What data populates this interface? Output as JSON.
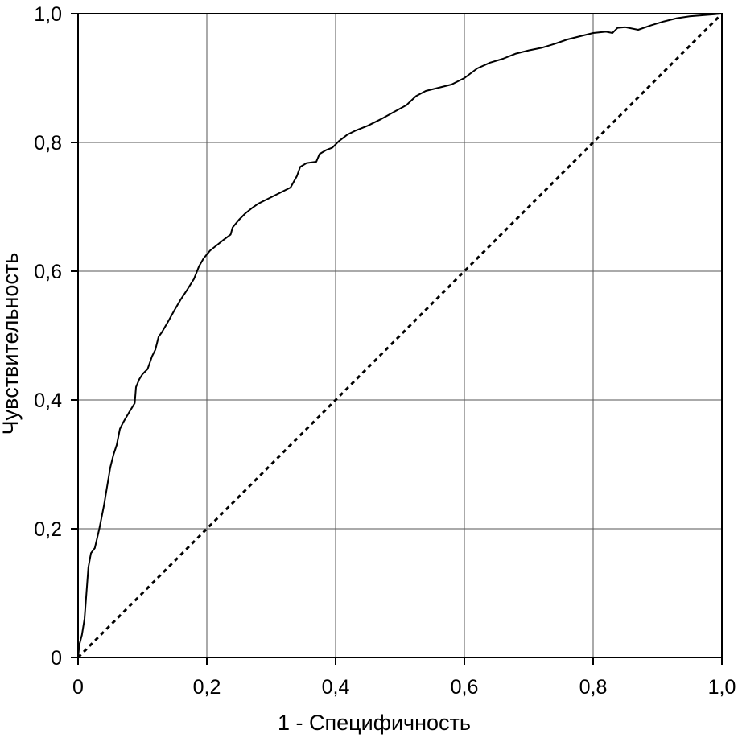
{
  "chart_data": {
    "type": "line",
    "title": "",
    "xlabel": "1 - Специфичность",
    "ylabel": "Чувствительность",
    "xlim": [
      0,
      1
    ],
    "ylim": [
      0,
      1
    ],
    "grid": true,
    "x_ticks": [
      0,
      0.2,
      0.4,
      0.6,
      0.8,
      1.0
    ],
    "x_tick_labels": [
      "0",
      "0,2",
      "0,4",
      "0,6",
      "0,8",
      "1,0"
    ],
    "y_ticks": [
      0,
      0.2,
      0.4,
      0.6,
      0.8,
      1.0
    ],
    "y_tick_labels": [
      "0",
      "0,2",
      "0,4",
      "0,6",
      "0,8",
      "1,0"
    ],
    "series": [
      {
        "style": "solid",
        "color": "#000000",
        "points": [
          [
            0.0,
            0.0
          ],
          [
            0.002,
            0.02
          ],
          [
            0.006,
            0.035
          ],
          [
            0.01,
            0.06
          ],
          [
            0.013,
            0.1
          ],
          [
            0.016,
            0.14
          ],
          [
            0.02,
            0.162
          ],
          [
            0.026,
            0.17
          ],
          [
            0.033,
            0.2
          ],
          [
            0.04,
            0.235
          ],
          [
            0.045,
            0.265
          ],
          [
            0.05,
            0.295
          ],
          [
            0.055,
            0.315
          ],
          [
            0.06,
            0.33
          ],
          [
            0.065,
            0.355
          ],
          [
            0.07,
            0.365
          ],
          [
            0.08,
            0.382
          ],
          [
            0.088,
            0.395
          ],
          [
            0.09,
            0.42
          ],
          [
            0.095,
            0.432
          ],
          [
            0.1,
            0.44
          ],
          [
            0.108,
            0.448
          ],
          [
            0.115,
            0.468
          ],
          [
            0.12,
            0.478
          ],
          [
            0.125,
            0.498
          ],
          [
            0.13,
            0.505
          ],
          [
            0.14,
            0.522
          ],
          [
            0.15,
            0.54
          ],
          [
            0.16,
            0.557
          ],
          [
            0.17,
            0.572
          ],
          [
            0.18,
            0.588
          ],
          [
            0.188,
            0.608
          ],
          [
            0.195,
            0.62
          ],
          [
            0.205,
            0.632
          ],
          [
            0.215,
            0.64
          ],
          [
            0.225,
            0.648
          ],
          [
            0.237,
            0.657
          ],
          [
            0.24,
            0.668
          ],
          [
            0.25,
            0.68
          ],
          [
            0.26,
            0.69
          ],
          [
            0.27,
            0.698
          ],
          [
            0.28,
            0.705
          ],
          [
            0.3,
            0.715
          ],
          [
            0.32,
            0.725
          ],
          [
            0.33,
            0.73
          ],
          [
            0.34,
            0.748
          ],
          [
            0.345,
            0.762
          ],
          [
            0.355,
            0.768
          ],
          [
            0.37,
            0.77
          ],
          [
            0.375,
            0.782
          ],
          [
            0.385,
            0.788
          ],
          [
            0.395,
            0.792
          ],
          [
            0.405,
            0.802
          ],
          [
            0.418,
            0.812
          ],
          [
            0.43,
            0.818
          ],
          [
            0.45,
            0.826
          ],
          [
            0.47,
            0.836
          ],
          [
            0.49,
            0.847
          ],
          [
            0.51,
            0.858
          ],
          [
            0.525,
            0.872
          ],
          [
            0.54,
            0.88
          ],
          [
            0.56,
            0.885
          ],
          [
            0.58,
            0.89
          ],
          [
            0.6,
            0.9
          ],
          [
            0.62,
            0.915
          ],
          [
            0.64,
            0.924
          ],
          [
            0.66,
            0.93
          ],
          [
            0.68,
            0.938
          ],
          [
            0.7,
            0.943
          ],
          [
            0.72,
            0.947
          ],
          [
            0.74,
            0.953
          ],
          [
            0.76,
            0.96
          ],
          [
            0.78,
            0.965
          ],
          [
            0.8,
            0.97
          ],
          [
            0.82,
            0.972
          ],
          [
            0.83,
            0.97
          ],
          [
            0.838,
            0.978
          ],
          [
            0.85,
            0.979
          ],
          [
            0.87,
            0.975
          ],
          [
            0.89,
            0.982
          ],
          [
            0.91,
            0.988
          ],
          [
            0.93,
            0.993
          ],
          [
            0.95,
            0.996
          ],
          [
            0.975,
            0.998
          ],
          [
            1.0,
            1.0
          ]
        ]
      },
      {
        "style": "dotted",
        "color": "#000000",
        "points": [
          [
            0,
            0
          ],
          [
            1,
            1
          ]
        ]
      }
    ]
  }
}
